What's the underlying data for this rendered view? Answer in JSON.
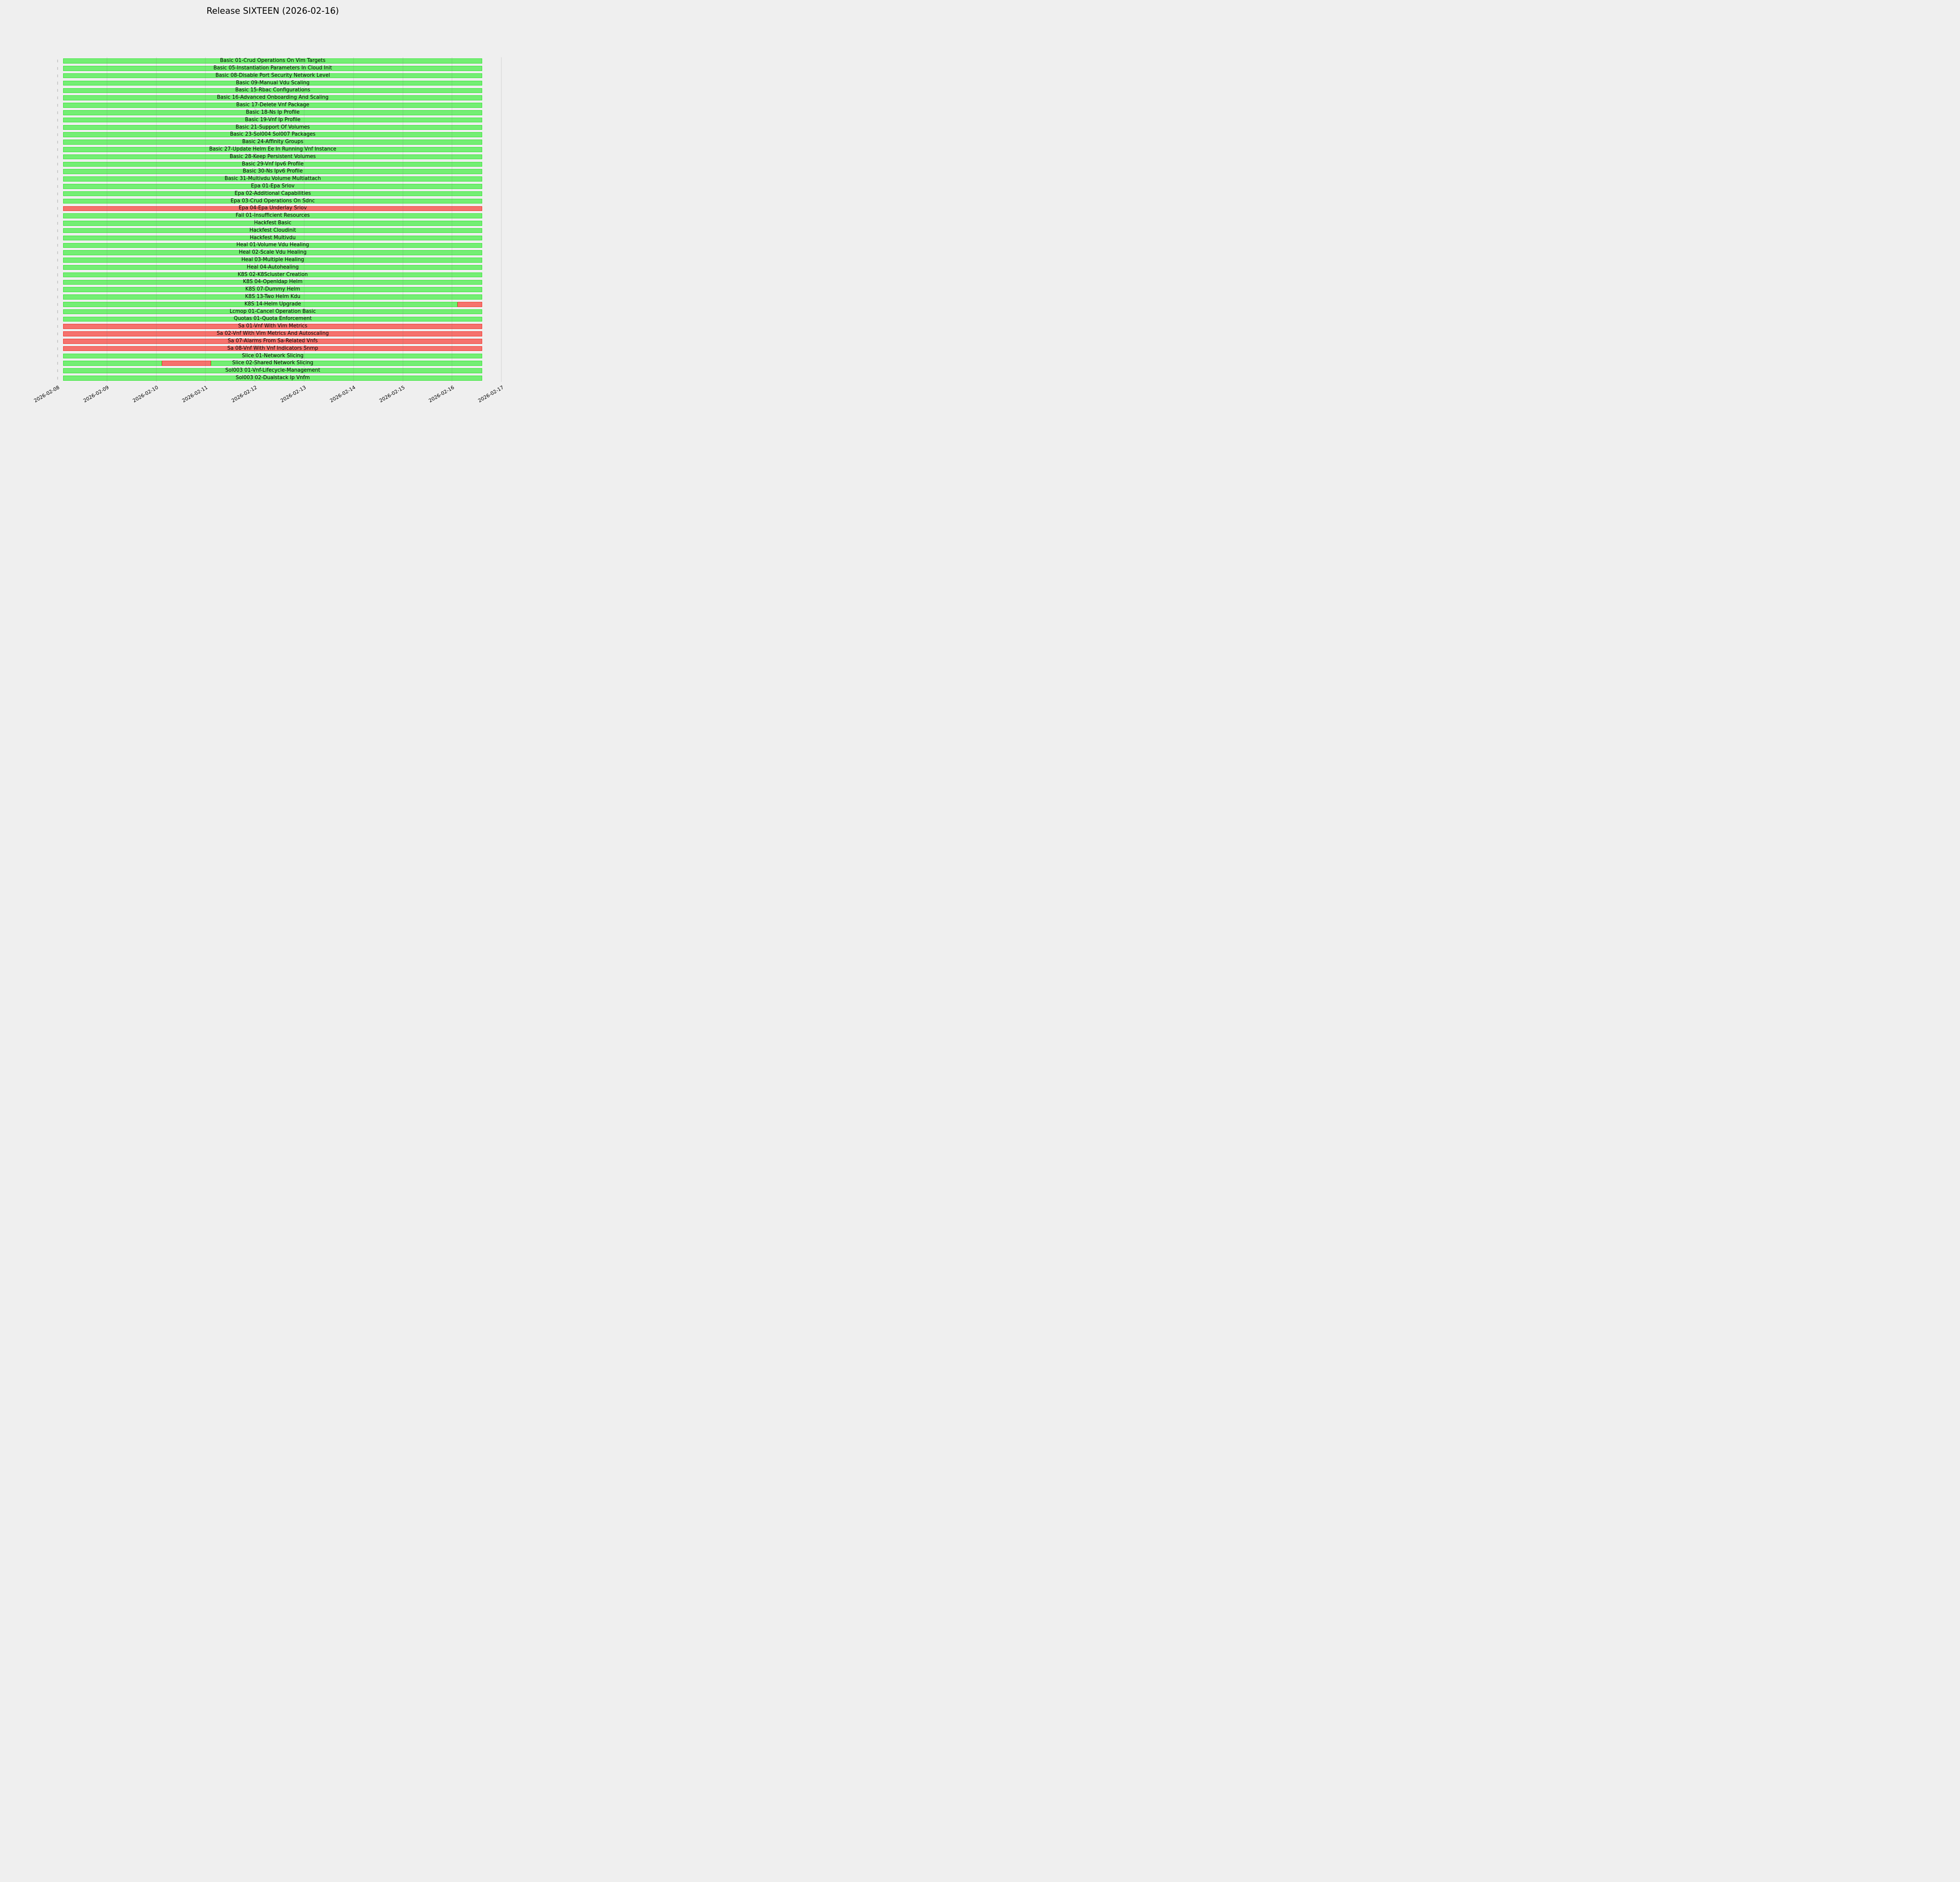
{
  "chart_data": {
    "type": "bar",
    "subtype": "gantt-timeline",
    "title": "Release SIXTEEN (2026-02-16)",
    "background_color": "#efefef",
    "status_colors": {
      "pass": "#74ee74",
      "pass_edge": "#2ce32c",
      "fail": "#f5726d",
      "fail_edge": "#ef2c22",
      "gridline": "rgba(105,105,105,0.25)",
      "ytick_dash": "#c5c5c5",
      "text": "#000000"
    },
    "x_axis": {
      "tick_labels": [
        "2026-02-08",
        "2026-02-09",
        "2026-02-10",
        "2026-02-11",
        "2026-02-12",
        "2026-02-13",
        "2026-02-14",
        "2026-02-15",
        "2026-02-16",
        "2026-02-17"
      ],
      "range": [
        "2026-02-08",
        "2026-02-17"
      ],
      "tick_rotation_deg": 30,
      "grid": true
    },
    "y_axis": {
      "tick_labels_visible": false,
      "row_count": 44
    },
    "run_window": {
      "start": "2026-02-08 02:45",
      "end": "2026-02-16 14:40"
    },
    "legend": {
      "visible": false
    },
    "rows": [
      {
        "label": "Basic 01-Crud Operations On Vim Targets",
        "status": "pass"
      },
      {
        "label": "Basic 05-Instantiation Parameters In Cloud Init",
        "status": "pass"
      },
      {
        "label": "Basic 08-Disable Port Security Network Level",
        "status": "pass"
      },
      {
        "label": "Basic 09-Manual Vdu Scaling",
        "status": "pass"
      },
      {
        "label": "Basic 15-Rbac Configurations",
        "status": "pass"
      },
      {
        "label": "Basic 16-Advanced Onboarding And Scaling",
        "status": "pass"
      },
      {
        "label": "Basic 17-Delete Vnf Package",
        "status": "pass"
      },
      {
        "label": "Basic 18-Ns Ip Profile",
        "status": "pass"
      },
      {
        "label": "Basic 19-Vnf Ip Profile",
        "status": "pass"
      },
      {
        "label": "Basic 21-Support Of Volumes",
        "status": "pass"
      },
      {
        "label": "Basic 23-Sol004 Sol007 Packages",
        "status": "pass"
      },
      {
        "label": "Basic 24-Affinity Groups",
        "status": "pass"
      },
      {
        "label": "Basic 27-Update Helm Ee In Running Vnf Instance",
        "status": "pass"
      },
      {
        "label": "Basic 28-Keep Persistent Volumes",
        "status": "pass"
      },
      {
        "label": "Basic 29-Vnf Ipv6 Profile",
        "status": "pass"
      },
      {
        "label": "Basic 30-Ns Ipv6 Profile",
        "status": "pass"
      },
      {
        "label": "Basic 31-Multivdu Volume Multiattach",
        "status": "pass"
      },
      {
        "label": "Epa 01-Epa Sriov",
        "status": "pass"
      },
      {
        "label": "Epa 02-Additional Capabilities",
        "status": "pass"
      },
      {
        "label": "Epa 03-Crud Operations On Sdnc",
        "status": "pass"
      },
      {
        "label": "Epa 04-Epa Underlay Sriov",
        "status": "fail"
      },
      {
        "label": "Fail 01-Insufficient Resources",
        "status": "pass"
      },
      {
        "label": "Hackfest Basic",
        "status": "pass"
      },
      {
        "label": "Hackfest Cloudinit",
        "status": "pass"
      },
      {
        "label": "Hackfest Multivdu",
        "status": "pass"
      },
      {
        "label": "Heal 01-Volume Vdu Healing",
        "status": "pass"
      },
      {
        "label": "Heal 02-Scale Vdu Healing",
        "status": "pass"
      },
      {
        "label": "Heal 03-Multiple Healing",
        "status": "pass"
      },
      {
        "label": "Heal 04-Autohealing",
        "status": "pass"
      },
      {
        "label": "K8S 02-K8Scluster Creation",
        "status": "pass"
      },
      {
        "label": "K8S 04-Openldap Helm",
        "status": "pass"
      },
      {
        "label": "K8S 07-Dummy Helm",
        "status": "pass"
      },
      {
        "label": "K8S 13-Two Helm Kdu",
        "status": "pass"
      },
      {
        "label": "K8S 14-Helm Upgrade",
        "status": "mixed",
        "segments": [
          {
            "status": "pass",
            "start": "2026-02-08 02:45",
            "end": "2026-02-16 02:40"
          },
          {
            "status": "fail",
            "start": "2026-02-16 02:40",
            "end": "2026-02-16 14:40"
          }
        ]
      },
      {
        "label": "Lcmop 01-Cancel Operation Basic",
        "status": "pass"
      },
      {
        "label": "Quotas 01-Quota Enforcement",
        "status": "pass"
      },
      {
        "label": "Sa 01-Vnf With Vim Metrics",
        "status": "fail"
      },
      {
        "label": "Sa 02-Vnf With Vim Metrics And Autoscaling",
        "status": "fail"
      },
      {
        "label": "Sa 07-Alarms From Sa-Related Vnfs",
        "status": "fail"
      },
      {
        "label": "Sa 08-Vnf With Vnf Indicators Snmp",
        "status": "fail"
      },
      {
        "label": "Slice 01-Network Slicing",
        "status": "pass"
      },
      {
        "label": "Slice 02-Shared Network Slicing",
        "status": "mixed",
        "segments": [
          {
            "status": "pass",
            "start": "2026-02-08 02:45",
            "end": "2026-02-10 02:40"
          },
          {
            "status": "fail",
            "start": "2026-02-10 02:40",
            "end": "2026-02-11 02:40"
          },
          {
            "status": "pass",
            "start": "2026-02-11 02:40",
            "end": "2026-02-16 14:40"
          }
        ]
      },
      {
        "label": "Sol003 01-Vnf-Lifecycle-Management",
        "status": "pass"
      },
      {
        "label": "Sol003 02-Dualstack Ip Vnfm",
        "status": "pass"
      }
    ]
  }
}
